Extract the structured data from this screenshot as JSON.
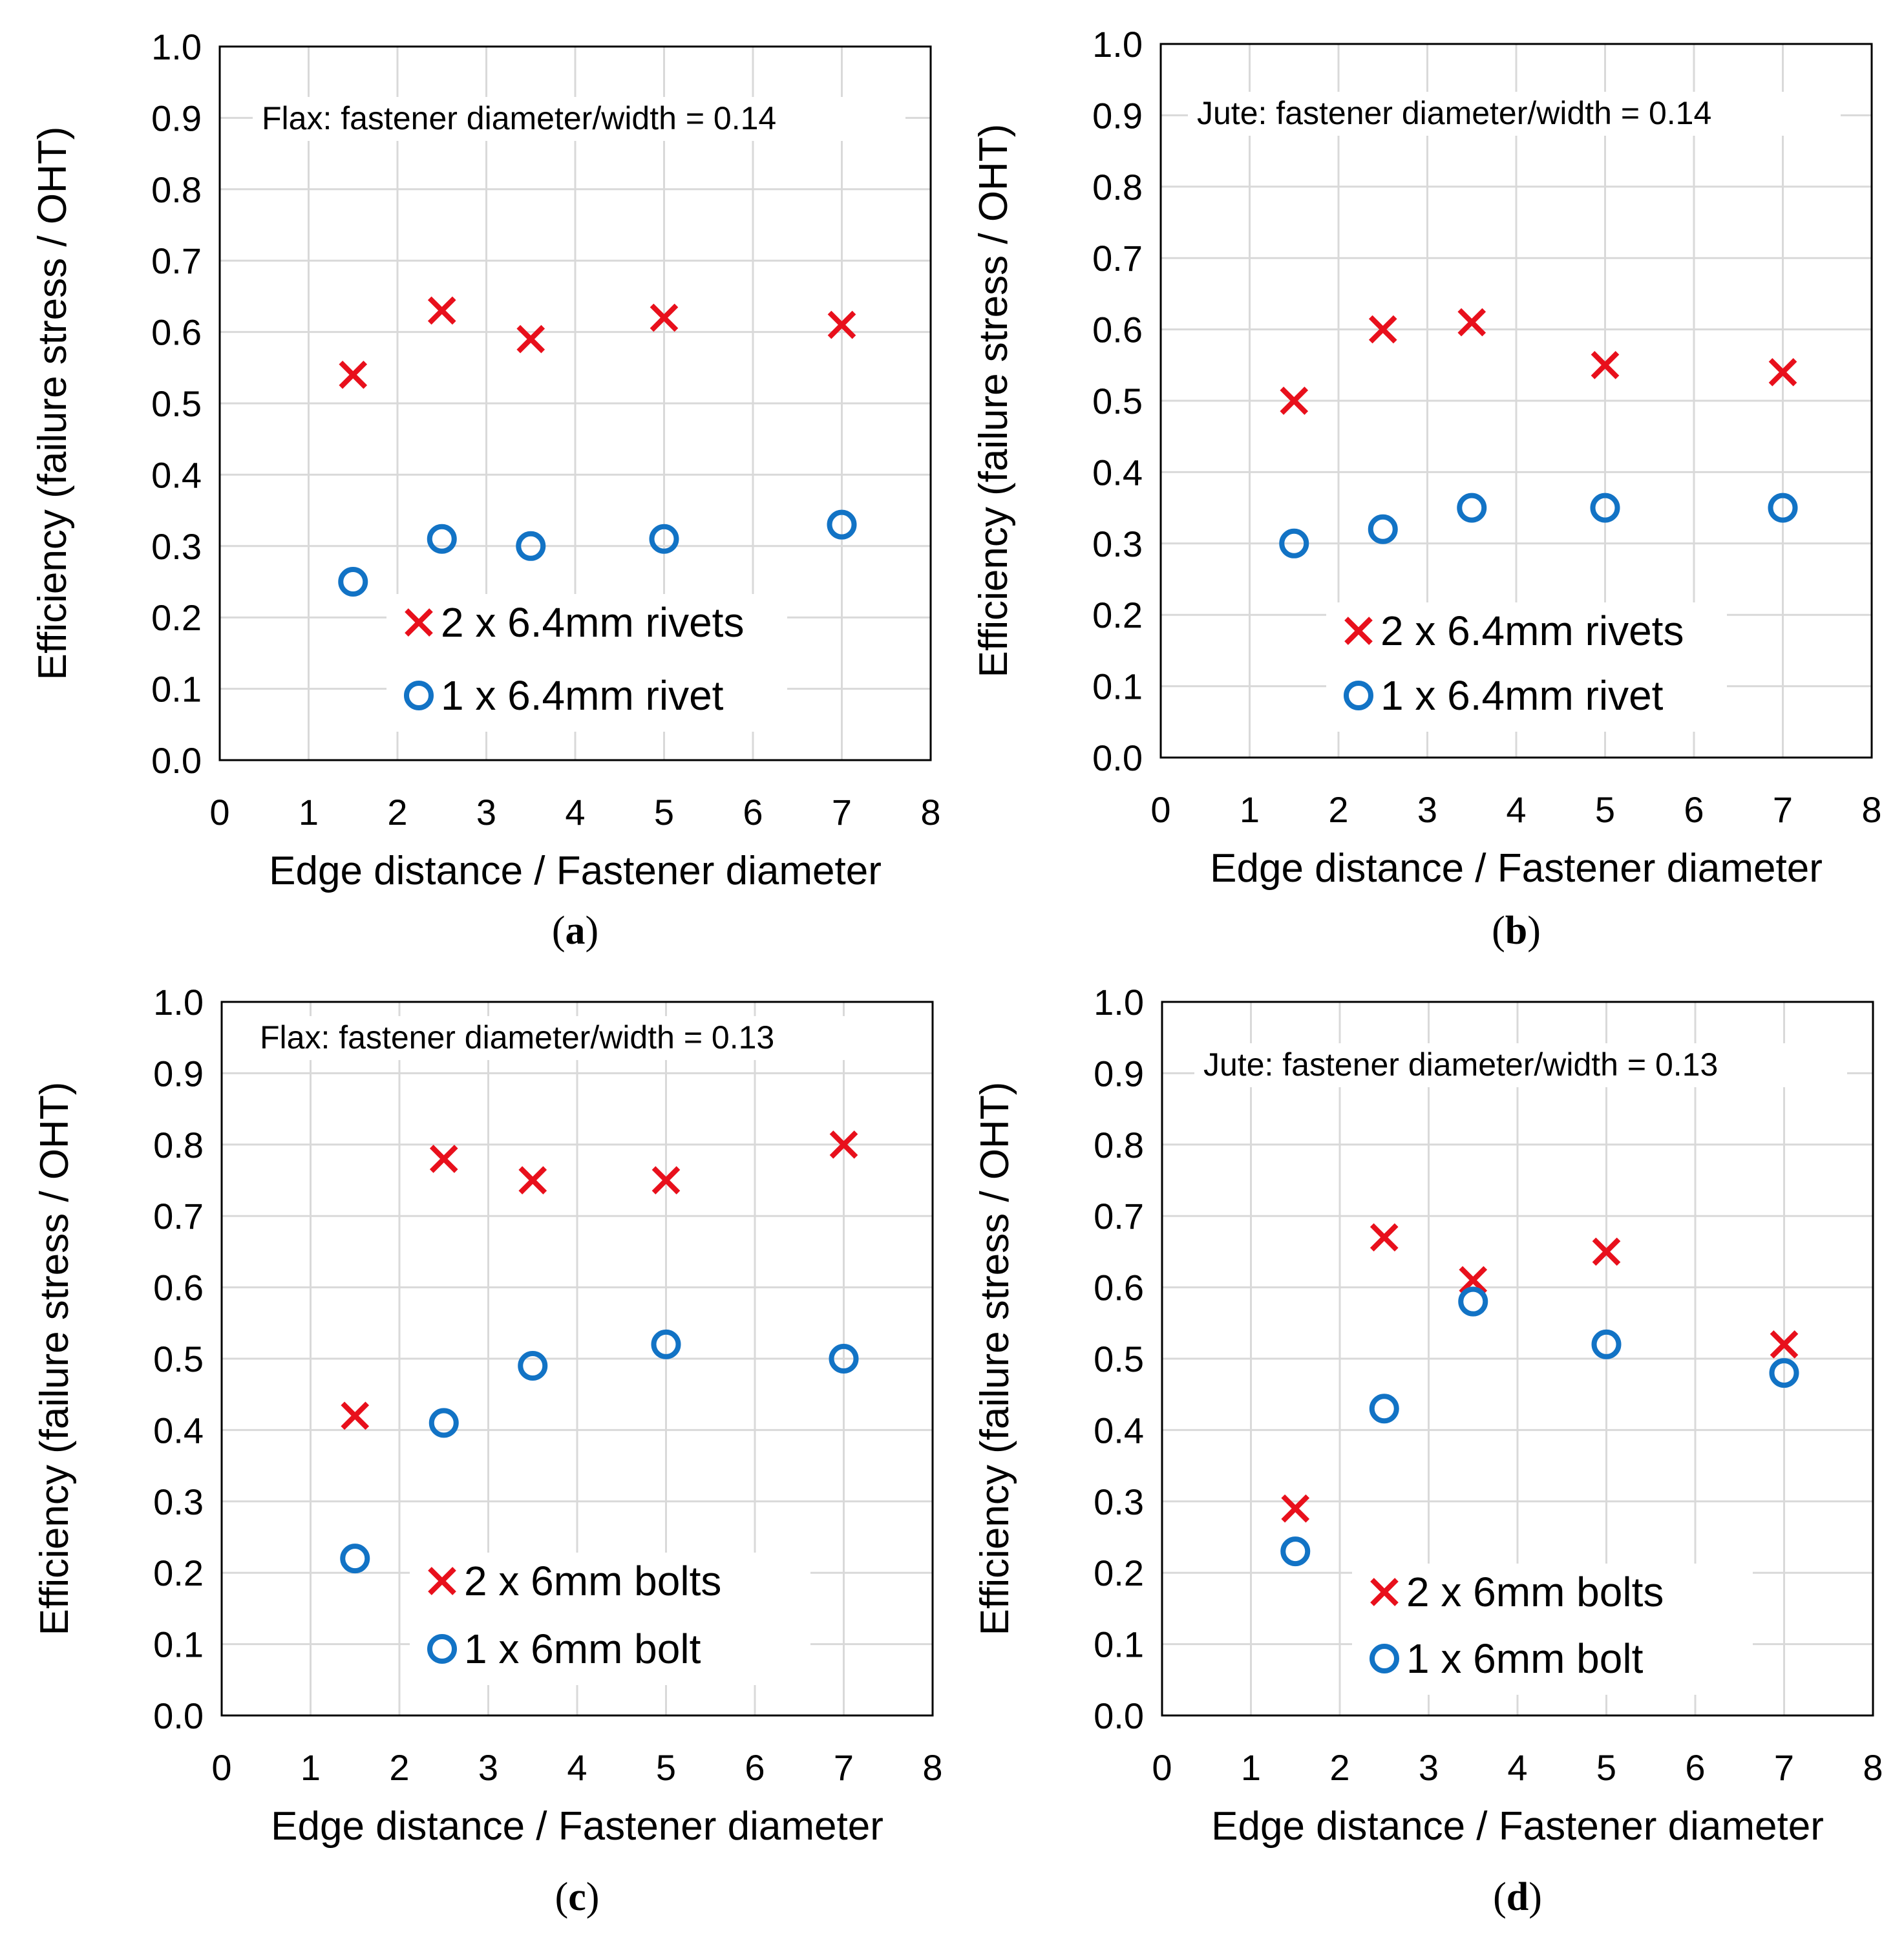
{
  "colors": {
    "cross": "#e8101c",
    "circle": "#1273c5",
    "grid": "#d9d9d9",
    "axis": "#000000"
  },
  "chart_data": [
    {
      "type": "scatter",
      "panel": "a",
      "title": "Flax: fastener diameter/width = 0.14",
      "xlabel": "Edge distance / Fastener diameter",
      "ylabel": "Efficiency (failure stress / OHT)",
      "xlim": [
        0,
        8
      ],
      "ylim": [
        0,
        1
      ],
      "xticks": [
        "0",
        "1",
        "2",
        "3",
        "4",
        "5",
        "6",
        "7",
        "8"
      ],
      "yticks": [
        "0.0",
        "0.1",
        "0.2",
        "0.3",
        "0.4",
        "0.5",
        "0.6",
        "0.7",
        "0.8",
        "0.9",
        "1.0"
      ],
      "grid": true,
      "series": [
        {
          "name": "2 x 6.4mm rivets",
          "marker": "cross",
          "x": [
            1.5,
            2.5,
            3.5,
            5,
            7
          ],
          "y": [
            0.54,
            0.63,
            0.59,
            0.62,
            0.61
          ]
        },
        {
          "name": "1 x 6.4mm rivet",
          "marker": "circle",
          "x": [
            1.5,
            2.5,
            3.5,
            5,
            7
          ],
          "y": [
            0.25,
            0.31,
            0.3,
            0.31,
            0.33
          ]
        }
      ]
    },
    {
      "type": "scatter",
      "panel": "b",
      "title": "Jute: fastener diameter/width = 0.14",
      "xlabel": "Edge distance / Fastener diameter",
      "ylabel": "Efficiency (failure stress / OHT)",
      "xlim": [
        0,
        8
      ],
      "ylim": [
        0,
        1
      ],
      "xticks": [
        "0",
        "1",
        "2",
        "3",
        "4",
        "5",
        "6",
        "7",
        "8"
      ],
      "yticks": [
        "0.0",
        "0.1",
        "0.2",
        "0.3",
        "0.4",
        "0.5",
        "0.6",
        "0.7",
        "0.8",
        "0.9",
        "1.0"
      ],
      "grid": true,
      "series": [
        {
          "name": "2 x 6.4mm rivets",
          "marker": "cross",
          "x": [
            1.5,
            2.5,
            3.5,
            5,
            7
          ],
          "y": [
            0.5,
            0.6,
            0.61,
            0.55,
            0.54
          ]
        },
        {
          "name": "1 x 6.4mm rivet",
          "marker": "circle",
          "x": [
            1.5,
            2.5,
            3.5,
            5,
            7
          ],
          "y": [
            0.3,
            0.32,
            0.35,
            0.35,
            0.35
          ]
        }
      ]
    },
    {
      "type": "scatter",
      "panel": "c",
      "title": "Flax: fastener diameter/width = 0.13",
      "xlabel": "Edge distance / Fastener diameter",
      "ylabel": "Efficiency (failure stress / OHT)",
      "xlim": [
        0,
        8
      ],
      "ylim": [
        0,
        1
      ],
      "xticks": [
        "0",
        "1",
        "2",
        "3",
        "4",
        "5",
        "6",
        "7",
        "8"
      ],
      "yticks": [
        "0.0",
        "0.1",
        "0.2",
        "0.3",
        "0.4",
        "0.5",
        "0.6",
        "0.7",
        "0.8",
        "0.9",
        "1.0"
      ],
      "grid": true,
      "series": [
        {
          "name": "2 x 6mm bolts",
          "marker": "cross",
          "x": [
            1.5,
            2.5,
            3.5,
            5,
            7
          ],
          "y": [
            0.42,
            0.78,
            0.75,
            0.75,
            0.8
          ]
        },
        {
          "name": "1 x 6mm bolt",
          "marker": "circle",
          "x": [
            1.5,
            2.5,
            3.5,
            5,
            7
          ],
          "y": [
            0.22,
            0.41,
            0.49,
            0.52,
            0.5
          ]
        }
      ]
    },
    {
      "type": "scatter",
      "panel": "d",
      "title": "Jute: fastener diameter/width = 0.13",
      "xlabel": "Edge distance / Fastener diameter",
      "ylabel": "Efficiency (failure stress / OHT)",
      "xlim": [
        0,
        8
      ],
      "ylim": [
        0,
        1
      ],
      "xticks": [
        "0",
        "1",
        "2",
        "3",
        "4",
        "5",
        "6",
        "7",
        "8"
      ],
      "yticks": [
        "0.0",
        "0.1",
        "0.2",
        "0.3",
        "0.4",
        "0.5",
        "0.6",
        "0.7",
        "0.8",
        "0.9",
        "1.0"
      ],
      "grid": true,
      "series": [
        {
          "name": "2 x 6mm bolts",
          "marker": "cross",
          "x": [
            1.5,
            2.5,
            3.5,
            5,
            7
          ],
          "y": [
            0.29,
            0.67,
            0.61,
            0.65,
            0.52
          ]
        },
        {
          "name": "1 x 6mm bolt",
          "marker": "circle",
          "x": [
            1.5,
            2.5,
            3.5,
            5,
            7
          ],
          "y": [
            0.23,
            0.43,
            0.58,
            0.52,
            0.48
          ]
        }
      ]
    }
  ]
}
